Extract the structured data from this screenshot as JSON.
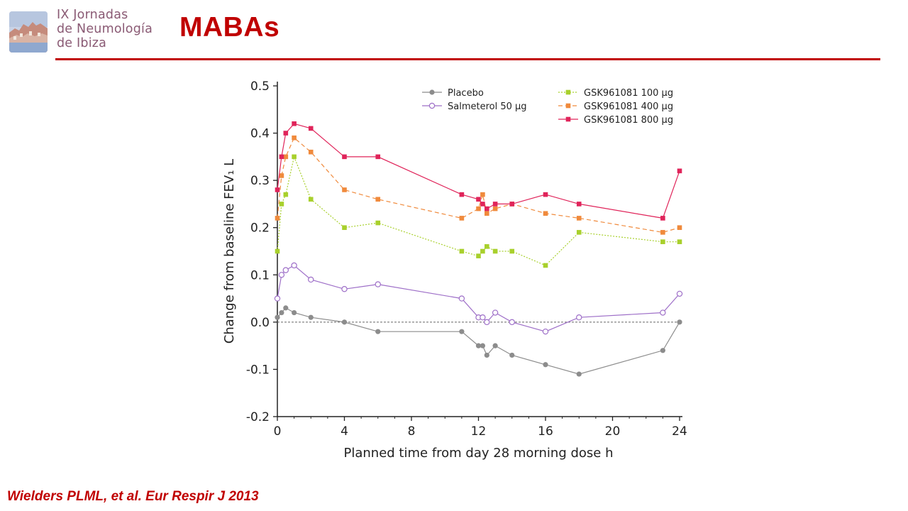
{
  "header": {
    "logo_lines": [
      "IX Jornadas",
      "de Neumología",
      "de Ibiza"
    ],
    "title": "MABAs"
  },
  "citation": "Wielders PLML, et al. Eur Respir J 2013",
  "colors": {
    "accent": "#c00000",
    "logo_text": "#8a5a74"
  },
  "chart_data": {
    "type": "line",
    "xlabel": "Planned time from day 28 morning dose h",
    "ylabel": "Change from baseline FEV₁ L",
    "xlim": [
      0,
      24
    ],
    "ylim": [
      -0.2,
      0.5
    ],
    "xticks": [
      0,
      4,
      8,
      12,
      16,
      20,
      24
    ],
    "yticks": [
      -0.2,
      -0.1,
      0.0,
      0.1,
      0.2,
      0.3,
      0.4,
      0.5
    ],
    "ytick_labels": [
      "-0.2",
      "-0.1",
      "0.0",
      "0.1",
      "0.2",
      "0.3",
      "0.4",
      "0.5"
    ],
    "reference_line": 0.0,
    "grid": false,
    "legend_position": "top-right",
    "series": [
      {
        "name": "Placebo",
        "color": "#8c8c8c",
        "marker": "circle-filled",
        "dash": "solid",
        "x": [
          0,
          0.25,
          0.5,
          1,
          2,
          4,
          6,
          11,
          12,
          12.25,
          12.5,
          13,
          14,
          16,
          18,
          23,
          24
        ],
        "y": [
          0.01,
          0.02,
          0.03,
          0.02,
          0.01,
          0.0,
          -0.02,
          -0.02,
          -0.05,
          -0.05,
          -0.07,
          -0.05,
          -0.07,
          -0.09,
          -0.11,
          -0.06,
          0.0
        ]
      },
      {
        "name": "Salmeterol 50 µg",
        "color": "#9e6fc8",
        "marker": "circle-open",
        "dash": "solid",
        "x": [
          0,
          0.25,
          0.5,
          1,
          2,
          4,
          6,
          11,
          12,
          12.25,
          12.5,
          13,
          14,
          16,
          18,
          23,
          24
        ],
        "y": [
          0.05,
          0.1,
          0.11,
          0.12,
          0.09,
          0.07,
          0.08,
          0.05,
          0.01,
          0.01,
          0.0,
          0.02,
          0.0,
          -0.02,
          0.01,
          0.02,
          0.06
        ]
      },
      {
        "name": "GSK961081 100 µg",
        "color": "#a8d02c",
        "marker": "square",
        "dash": "dotted",
        "x": [
          0,
          0.25,
          0.5,
          1,
          2,
          4,
          6,
          11,
          12,
          12.25,
          12.5,
          13,
          14,
          16,
          18,
          23,
          24
        ],
        "y": [
          0.15,
          0.25,
          0.27,
          0.35,
          0.26,
          0.2,
          0.21,
          0.15,
          0.14,
          0.15,
          0.16,
          0.15,
          0.15,
          0.12,
          0.19,
          0.17,
          0.17
        ]
      },
      {
        "name": "GSK961081 400 µg",
        "color": "#f08a3c",
        "marker": "square",
        "dash": "dashed",
        "x": [
          0,
          0.25,
          0.5,
          1,
          2,
          4,
          6,
          11,
          12,
          12.25,
          12.5,
          13,
          14,
          16,
          18,
          23,
          24
        ],
        "y": [
          0.22,
          0.31,
          0.35,
          0.39,
          0.36,
          0.28,
          0.26,
          0.22,
          0.24,
          0.27,
          0.23,
          0.24,
          0.25,
          0.23,
          0.22,
          0.19,
          0.2
        ]
      },
      {
        "name": "GSK961081 800 µg",
        "color": "#e0245a",
        "marker": "square",
        "dash": "solid",
        "x": [
          0,
          0.25,
          0.5,
          1,
          2,
          4,
          6,
          11,
          12,
          12.25,
          12.5,
          13,
          14,
          16,
          18,
          23,
          24
        ],
        "y": [
          0.28,
          0.35,
          0.4,
          0.42,
          0.41,
          0.35,
          0.35,
          0.27,
          0.26,
          0.25,
          0.24,
          0.25,
          0.25,
          0.27,
          0.25,
          0.22,
          0.32
        ]
      }
    ]
  }
}
